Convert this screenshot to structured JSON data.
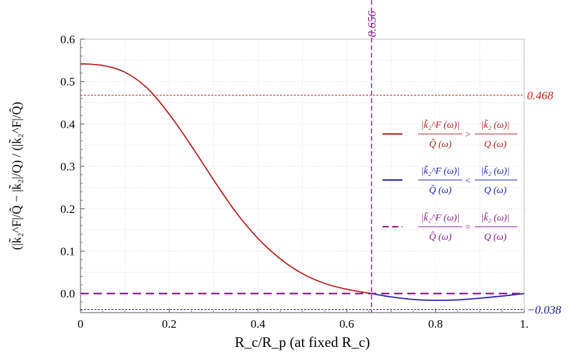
{
  "chart_data": {
    "type": "line",
    "title": "",
    "xlabel": "R_c/R_p (at fixed R_c)",
    "ylabel": "(|k̃₂^F|/Q̂ − |k̃₂|/Q) / (|k̃₂^F|/Q̂)",
    "xlim": [
      0,
      1
    ],
    "ylim": [
      -0.045,
      0.6
    ],
    "grid": true,
    "x_ticks": [
      {
        "value": 0,
        "label": "0"
      },
      {
        "value": 0.2,
        "label": "0.2"
      },
      {
        "value": 0.4,
        "label": "0.4"
      },
      {
        "value": 0.6,
        "label": "0.6"
      },
      {
        "value": 0.8,
        "label": "0.8"
      },
      {
        "value": 1.0,
        "label": "1."
      }
    ],
    "y_ticks": [
      {
        "value": 0.0,
        "label": "0.0"
      },
      {
        "value": 0.1,
        "label": "0.1"
      },
      {
        "value": 0.2,
        "label": "0.2"
      },
      {
        "value": 0.3,
        "label": "0.3"
      },
      {
        "value": 0.4,
        "label": "0.4"
      },
      {
        "value": 0.5,
        "label": "0.5"
      },
      {
        "value": 0.6,
        "label": "0.6"
      }
    ],
    "series": [
      {
        "name": "|k̃₂^F(ω)|/Q̂(ω) > |k̃₂(ω)|/Q(ω)",
        "color": "#b22222",
        "style": "solid",
        "x": [
          0,
          0.05,
          0.1,
          0.15,
          0.2,
          0.25,
          0.3,
          0.35,
          0.4,
          0.45,
          0.5,
          0.55,
          0.6,
          0.656
        ],
        "y": [
          0.542,
          0.538,
          0.522,
          0.485,
          0.423,
          0.348,
          0.268,
          0.192,
          0.13,
          0.082,
          0.047,
          0.024,
          0.01,
          0.0
        ]
      },
      {
        "name": "|k̃₂^F(ω)|/Q̂(ω) < |k̃₂(ω)|/Q(ω)",
        "color": "#2222aa",
        "style": "solid",
        "x": [
          0.656,
          0.7,
          0.75,
          0.8,
          0.85,
          0.9,
          0.95,
          1.0
        ],
        "y": [
          0.0,
          -0.008,
          -0.014,
          -0.016,
          -0.015,
          -0.011,
          -0.006,
          0.0
        ]
      },
      {
        "name": "|k̃₂^F(ω)|/Q̂(ω) = |k̃₂(ω)|/Q(ω)",
        "color": "#8b1a8b",
        "style": "dashed",
        "x": [
          0,
          1
        ],
        "y": [
          0,
          0
        ]
      }
    ],
    "reference_lines": [
      {
        "orientation": "horizontal",
        "value": 0.468,
        "label": "0.468",
        "color": "#cc2222",
        "style": "dashed"
      },
      {
        "orientation": "horizontal",
        "value": -0.038,
        "label": "−0.038",
        "color": "#1a1a8b",
        "style": "dashed"
      },
      {
        "orientation": "vertical",
        "value": 0.656,
        "label": "0.656",
        "color": "#8b1a8b",
        "style": "dashed"
      }
    ],
    "legend": {
      "placement": "right",
      "entries": [
        {
          "lhs_num": "|k̃₂^F (ω)|",
          "lhs_den": "Q̂ (ω)",
          "op": ">",
          "rhs_num": "|k̃₂ (ω)|",
          "rhs_den": "Q (ω)",
          "color": "#b22222",
          "style": "solid"
        },
        {
          "lhs_num": "|k̃₂^F (ω)|",
          "lhs_den": "Q̂ (ω)",
          "op": "<",
          "rhs_num": "|k̃₂ (ω)|",
          "rhs_den": "Q (ω)",
          "color": "#2222aa",
          "style": "solid"
        },
        {
          "lhs_num": "|k̃₂^F (ω)|",
          "lhs_den": "Q̂ (ω)",
          "op": "=",
          "rhs_num": "|k̃₂ (ω)|",
          "rhs_den": "Q (ω)",
          "color": "#8b1a8b",
          "style": "dashed"
        }
      ]
    }
  }
}
